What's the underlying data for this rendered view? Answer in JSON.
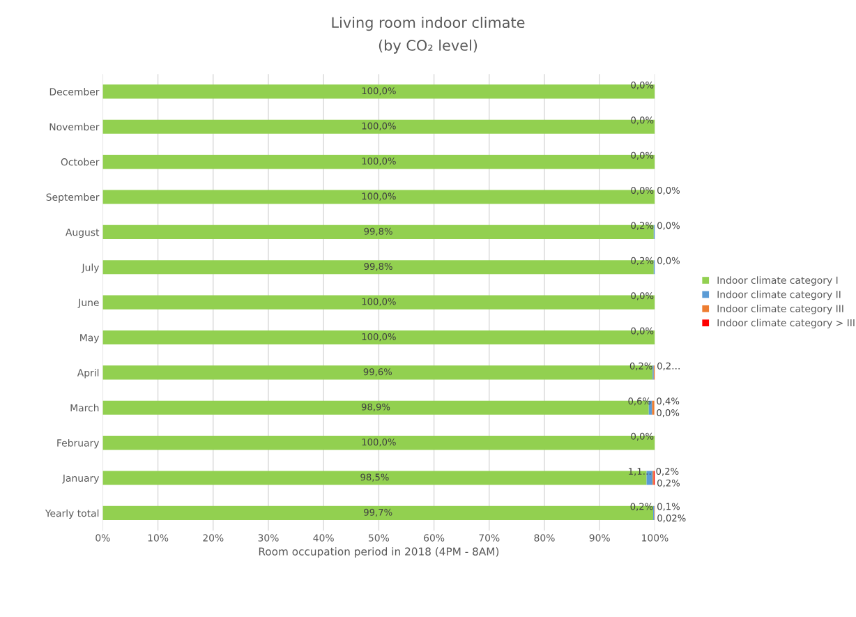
{
  "chart_data": {
    "type": "bar",
    "orientation": "horizontal",
    "stacked": true,
    "title": "Living room indoor climate",
    "subtitle": "(by CO₂ level)",
    "xlabel": "Room occupation period in 2018 (4PM - 8AM)",
    "categories": [
      "December",
      "November",
      "October",
      "September",
      "August",
      "July",
      "June",
      "May",
      "April",
      "March",
      "February",
      "January",
      "Yearly total"
    ],
    "series": [
      {
        "name": "Indoor climate category I",
        "color": "#92d050",
        "values": [
          100,
          100,
          100,
          100,
          99.8,
          99.8,
          100,
          100,
          99.6,
          98.9,
          100,
          98.5,
          99.7
        ],
        "value_labels": [
          "100,0%",
          "100,0%",
          "100,0%",
          "100,0%",
          "99,8%",
          "99,8%",
          "100,0%",
          "100,0%",
          "99,6%",
          "98,9%",
          "100,0%",
          "98,5%",
          "99,7%"
        ]
      },
      {
        "name": "Indoor climate category II",
        "color": "#5b9bd5",
        "values": [
          0,
          0,
          0,
          0,
          0.2,
          0.2,
          0,
          0,
          0.2,
          0.6,
          0,
          1.1,
          0.2
        ],
        "value_labels": [
          "0,0%",
          "0,0%",
          "0,0%",
          "0,0%",
          "0,2%",
          "0,2%",
          "0,0%",
          "0,0%",
          "0,2%",
          "0,6%",
          "0,0%",
          "1,1…",
          "0,2%"
        ]
      },
      {
        "name": "Indoor climate category III",
        "color": "#ed7d31",
        "values": [
          null,
          null,
          null,
          0,
          0,
          0,
          null,
          null,
          0.2,
          0.4,
          null,
          0.2,
          0.1
        ],
        "value_labels": [
          null,
          null,
          null,
          "0,0%",
          "0,0%",
          "0,0%",
          null,
          null,
          "0,2…",
          "0,4%",
          null,
          "0,2%",
          "0,1%"
        ]
      },
      {
        "name": "Indoor climate category > III",
        "color": "#ff0000",
        "values": [
          null,
          null,
          null,
          null,
          null,
          null,
          null,
          null,
          null,
          0,
          null,
          0.2,
          0.02
        ],
        "value_labels": [
          null,
          null,
          null,
          null,
          null,
          null,
          null,
          null,
          null,
          "0,0%",
          null,
          "0,2%",
          "0,02%"
        ]
      }
    ],
    "xlim": [
      0,
      100
    ],
    "xticks": [
      {
        "value": 0,
        "label": "0%"
      },
      {
        "value": 10,
        "label": "10%"
      },
      {
        "value": 20,
        "label": "20%"
      },
      {
        "value": 30,
        "label": "30%"
      },
      {
        "value": 40,
        "label": "40%"
      },
      {
        "value": 50,
        "label": "50%"
      },
      {
        "value": 60,
        "label": "60%"
      },
      {
        "value": 70,
        "label": "70%"
      },
      {
        "value": 80,
        "label": "80%"
      },
      {
        "value": 90,
        "label": "90%"
      },
      {
        "value": 100,
        "label": "100%"
      }
    ],
    "grid": "x",
    "legend": "right"
  }
}
